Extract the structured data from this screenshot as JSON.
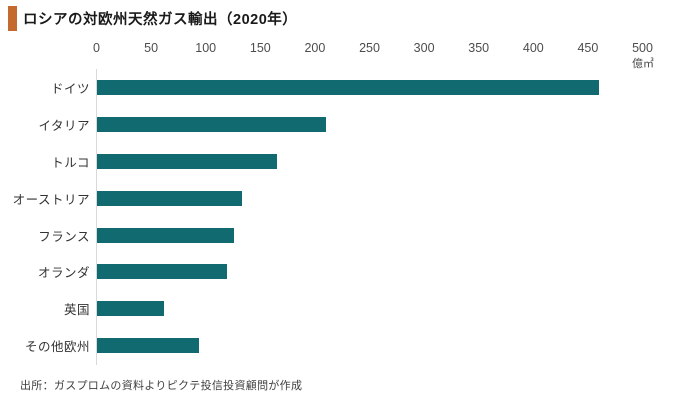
{
  "header": {
    "title": "ロシアの対欧州天然ガス輸出（2020年）"
  },
  "chart_data": {
    "type": "bar",
    "orientation": "horizontal",
    "title": "ロシアの対欧州天然ガス輸出（2020年）",
    "categories": [
      "ドイツ",
      "イタリア",
      "トルコ",
      "オーストリア",
      "フランス",
      "オランダ",
      "英国",
      "その他欧州"
    ],
    "values": [
      460,
      210,
      165,
      133,
      125,
      119,
      61,
      93
    ],
    "unit": "億㎥",
    "xlabel": "",
    "ylabel": "",
    "xlim": [
      0,
      500
    ],
    "axis_ticks": [
      0,
      50,
      100,
      150,
      200,
      250,
      300,
      350,
      400,
      450,
      500
    ],
    "grid": false,
    "legend": "none",
    "bar_color": "#116A70",
    "accent_color": "#C56A2E"
  },
  "footer": {
    "source": "出所：ガスプロムの資料よりピクテ投信投資顧問が作成"
  }
}
